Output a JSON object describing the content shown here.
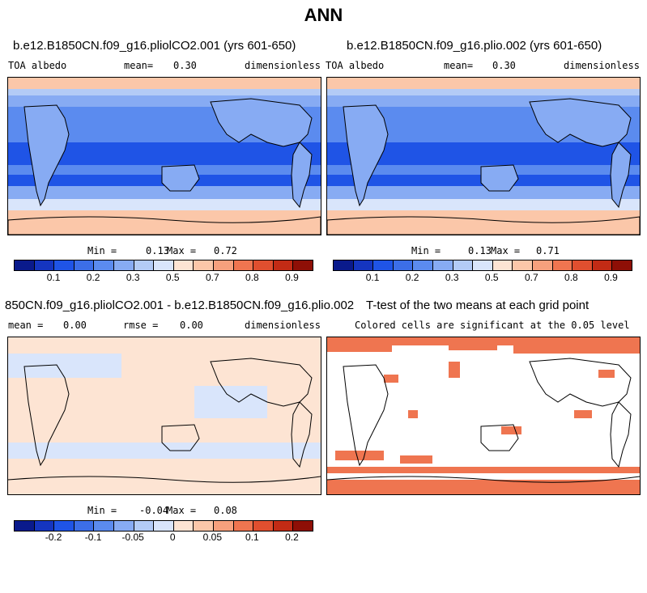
{
  "page_title": "ANN",
  "panels": [
    {
      "title": "b.e12.B1850CN.f09_g16.pliolCO2.001 (yrs 601-650)",
      "left_label": "TOA albedo",
      "mean_label": "mean=",
      "mean_value": "0.30",
      "unit": "dimensionless",
      "min_label": "Min =",
      "min_value": "0.13",
      "max_label": "Max =",
      "max_value": "0.72"
    },
    {
      "title": "b.e12.B1850CN.f09_g16.plio.002 (yrs 601-650)",
      "left_label": "TOA albedo",
      "mean_label": "mean=",
      "mean_value": "0.30",
      "unit": "dimensionless",
      "min_label": "Min =",
      "min_value": "0.13",
      "max_label": "Max =",
      "max_value": "0.71"
    },
    {
      "title": "850CN.f09_g16.pliolCO2.001 - b.e12.B1850CN.f09_g16.plio.002",
      "mean_label": "mean =",
      "mean_value": "0.00",
      "rmse_label": "rmse =",
      "rmse_value": "0.00",
      "unit": "dimensionless",
      "min_label": "Min =",
      "min_value": "-0.04",
      "max_label": "Max =",
      "max_value": "0.08"
    },
    {
      "title": "T-test of the two means at each grid point",
      "subtitle": "Colored cells are significant at the 0.05 level"
    }
  ],
  "chart_data": [
    {
      "type": "heatmap",
      "title": "b.e12.B1850CN.f09_g16.pliolCO2.001 (yrs 601-650)",
      "variable": "TOA albedo",
      "units": "dimensionless",
      "mean": 0.3,
      "min": 0.13,
      "max": 0.72,
      "colorbar_ticks": [
        "0.1",
        "0.2",
        "0.3",
        "0.5",
        "0.7",
        "0.8",
        "0.9"
      ]
    },
    {
      "type": "heatmap",
      "title": "b.e12.B1850CN.f09_g16.plio.002 (yrs 601-650)",
      "variable": "TOA albedo",
      "units": "dimensionless",
      "mean": 0.3,
      "min": 0.13,
      "max": 0.71,
      "colorbar_ticks": [
        "0.1",
        "0.2",
        "0.3",
        "0.5",
        "0.7",
        "0.8",
        "0.9"
      ]
    },
    {
      "type": "heatmap",
      "title": "850CN.f09_g16.pliolCO2.001 - b.e12.B1850CN.f09_g16.plio.002",
      "units": "dimensionless",
      "mean": 0.0,
      "rmse": 0.0,
      "min": -0.04,
      "max": 0.08,
      "colorbar_ticks": [
        "-0.2",
        "-0.1",
        "-0.05",
        "0",
        "0.05",
        "0.1",
        "0.2"
      ]
    },
    {
      "type": "heatmap",
      "title": "T-test of the two means at each grid point",
      "subtitle": "Colored cells are significant at the 0.05 level",
      "significance_level": 0.05
    }
  ],
  "colors": {
    "albedo_scale": [
      "#0a1a8c",
      "#1535c0",
      "#1f54e6",
      "#3c6ee8",
      "#5b8bef",
      "#87abf3",
      "#b3cbf6",
      "#d9e5fb",
      "#fde4d3",
      "#fbc7a9",
      "#f6a07d",
      "#ef7550",
      "#e04f2f",
      "#c22b15",
      "#8e0f06"
    ],
    "ocean_low": "#1f54e6",
    "ocean_mid": "#5b8bef",
    "land": "#87abf3",
    "polar": "#fbc7a9",
    "diff_pos": "#fde4d3",
    "diff_neg": "#d9e5fb",
    "signif": "#ef7550"
  }
}
